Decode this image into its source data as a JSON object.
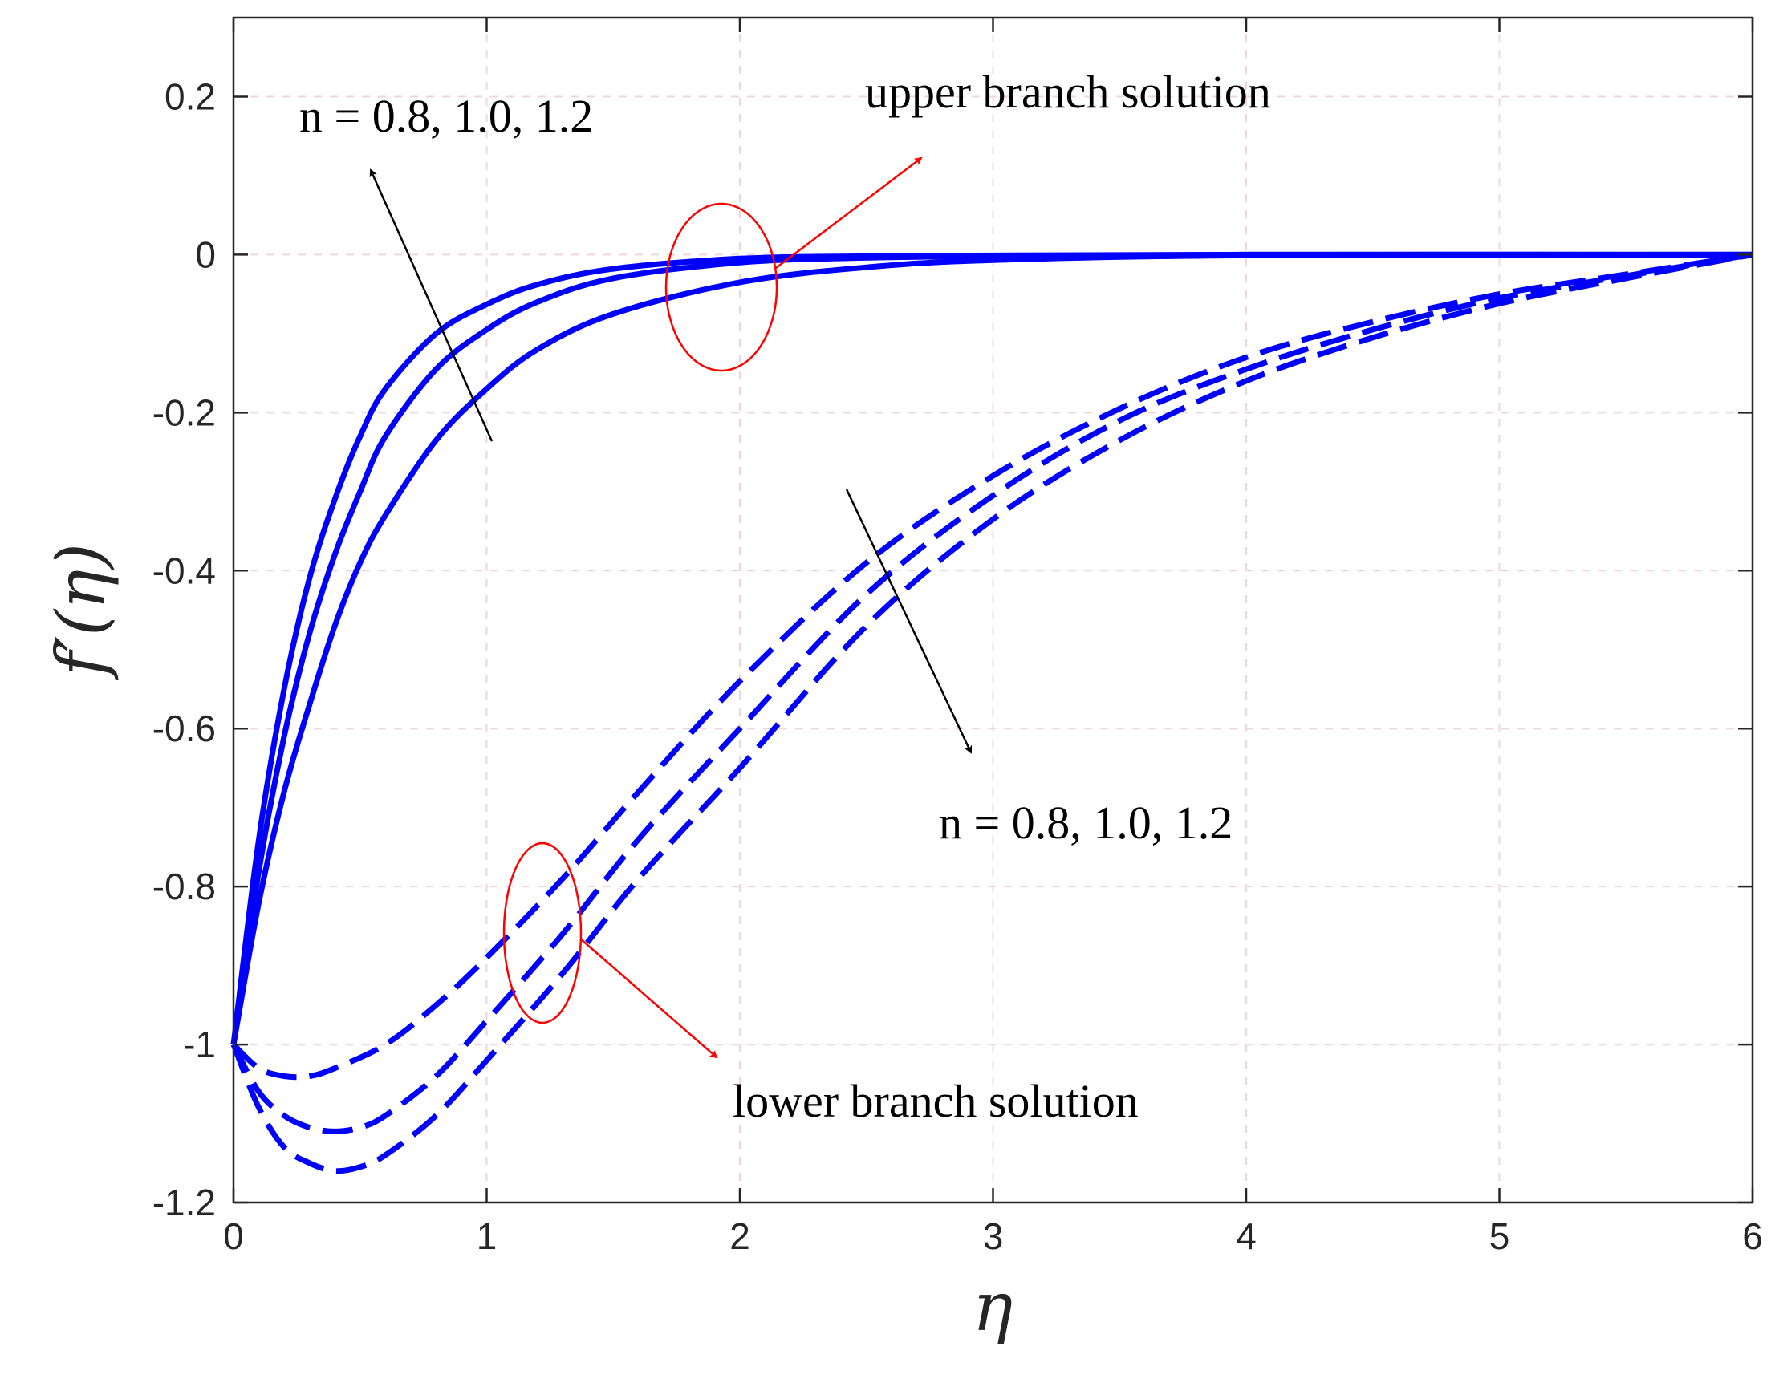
{
  "chart_data": {
    "type": "line",
    "xlabel": "η",
    "ylabel": "f′(η)",
    "xlim": [
      0,
      6
    ],
    "ylim": [
      -1.2,
      0.3
    ],
    "x_ticks": [
      "0",
      "1",
      "2",
      "3",
      "4",
      "5",
      "6"
    ],
    "y_ticks": [
      "0.2",
      "0",
      "-0.2",
      "-0.4",
      "-0.6",
      "-0.8",
      "-1",
      "-1.2"
    ],
    "grid": true,
    "line_color": "#0000ff",
    "annotation_color": "#ff0000",
    "series": [
      {
        "branch": "upper",
        "n": 0.8,
        "style": "solid",
        "x": [
          0,
          0.1,
          0.2,
          0.3,
          0.4,
          0.5,
          0.6,
          0.8,
          1.0,
          1.2,
          1.5,
          2.0,
          2.5,
          3,
          4,
          6
        ],
        "y": [
          -1.0,
          -0.74,
          -0.55,
          -0.41,
          -0.31,
          -0.23,
          -0.17,
          -0.1,
          -0.063,
          -0.038,
          -0.018,
          -0.005,
          -0.002,
          -0.001,
          0.0,
          0.0
        ]
      },
      {
        "branch": "upper",
        "n": 1.0,
        "style": "solid",
        "x": [
          0,
          0.1,
          0.2,
          0.3,
          0.4,
          0.5,
          0.6,
          0.8,
          1.0,
          1.2,
          1.5,
          2.0,
          2.5,
          3,
          4,
          6
        ],
        "y": [
          -1.0,
          -0.78,
          -0.61,
          -0.48,
          -0.38,
          -0.3,
          -0.23,
          -0.145,
          -0.095,
          -0.06,
          -0.03,
          -0.01,
          -0.004,
          -0.002,
          0.0,
          0.0
        ]
      },
      {
        "branch": "upper",
        "n": 1.2,
        "style": "solid",
        "x": [
          0,
          0.1,
          0.2,
          0.3,
          0.4,
          0.5,
          0.6,
          0.8,
          1.0,
          1.2,
          1.5,
          2.0,
          2.5,
          3,
          4,
          6
        ],
        "y": [
          -1.0,
          -0.82,
          -0.68,
          -0.57,
          -0.47,
          -0.39,
          -0.33,
          -0.235,
          -0.17,
          -0.12,
          -0.075,
          -0.035,
          -0.016,
          -0.007,
          -0.001,
          0.0
        ]
      },
      {
        "branch": "lower",
        "n": 0.8,
        "style": "dashed",
        "x": [
          0,
          0.1,
          0.2,
          0.3,
          0.4,
          0.6,
          0.8,
          1.0,
          1.3,
          1.6,
          2.0,
          2.5,
          3.0,
          3.5,
          4.0,
          4.5,
          5.0,
          5.5,
          6.0
        ],
        "y": [
          -1.0,
          -1.03,
          -1.04,
          -1.04,
          -1.03,
          -1.0,
          -0.95,
          -0.89,
          -0.79,
          -0.68,
          -0.54,
          -0.39,
          -0.28,
          -0.195,
          -0.13,
          -0.085,
          -0.05,
          -0.025,
          0.0
        ]
      },
      {
        "branch": "lower",
        "n": 1.0,
        "style": "dashed",
        "x": [
          0,
          0.1,
          0.2,
          0.3,
          0.4,
          0.5,
          0.6,
          0.8,
          1.0,
          1.3,
          1.6,
          2.0,
          2.5,
          3.0,
          3.5,
          4.0,
          4.5,
          5.0,
          5.5,
          6.0
        ],
        "y": [
          -1.0,
          -1.06,
          -1.09,
          -1.105,
          -1.11,
          -1.105,
          -1.09,
          -1.04,
          -0.97,
          -0.86,
          -0.74,
          -0.6,
          -0.43,
          -0.305,
          -0.21,
          -0.145,
          -0.095,
          -0.055,
          -0.027,
          0.0
        ]
      },
      {
        "branch": "lower",
        "n": 1.2,
        "style": "dashed",
        "x": [
          0,
          0.1,
          0.2,
          0.3,
          0.4,
          0.5,
          0.6,
          0.8,
          1.0,
          1.3,
          1.6,
          2.0,
          2.5,
          3.0,
          3.5,
          4.0,
          4.5,
          5.0,
          5.5,
          6.0
        ],
        "y": [
          -1.0,
          -1.08,
          -1.13,
          -1.15,
          -1.16,
          -1.155,
          -1.14,
          -1.09,
          -1.02,
          -0.91,
          -0.79,
          -0.65,
          -0.47,
          -0.335,
          -0.235,
          -0.16,
          -0.105,
          -0.062,
          -0.03,
          0.0
        ]
      }
    ],
    "annotations": {
      "upper_params": "n = 0.8, 1.0, 1.2",
      "upper_branch": "upper branch solution",
      "lower_params": "n = 0.8, 1.0, 1.2",
      "lower_branch": "lower branch solution"
    }
  }
}
